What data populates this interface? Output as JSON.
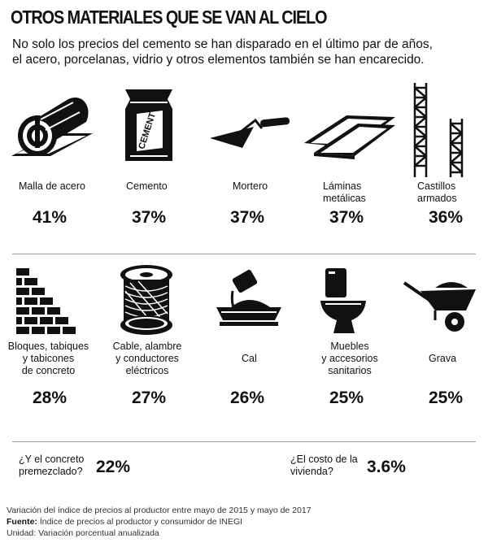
{
  "header": {
    "title": "OTROS MATERIALES QUE SE VAN AL CIELO",
    "subtitle_line1": "No solo los precios del cemento se han disparado en el último par de años,",
    "subtitle_line2": "el acero, porcelanas, vidrio y otros elementos también se han encarecido."
  },
  "row1": [
    {
      "icon": "steel-mesh-roll-icon",
      "label_l1": "Malla de acero",
      "label_l2": "",
      "value": "41%"
    },
    {
      "icon": "cement-bag-icon",
      "label_l1": "Cemento",
      "label_l2": "",
      "value": "37%",
      "bag_text": "CEMENT"
    },
    {
      "icon": "mortar-trowel-icon",
      "label_l1": "Mortero",
      "label_l2": "",
      "value": "37%"
    },
    {
      "icon": "metal-sheets-icon",
      "label_l1": "Láminas",
      "label_l2": "metálicas",
      "value": "37%"
    },
    {
      "icon": "rebar-scaffold-icon",
      "label_l1": "Castillos",
      "label_l2": "armados",
      "value": "36%"
    }
  ],
  "row2": [
    {
      "icon": "brick-wall-icon",
      "label_l1": "Bloques, tabiques",
      "label_l2": "y tabicones",
      "label_l3": "de concreto",
      "value": "28%"
    },
    {
      "icon": "cable-spool-icon",
      "label_l1": "Cable, alambre",
      "label_l2": "y conductores",
      "label_l3": "eléctricos",
      "value": "27%"
    },
    {
      "icon": "lime-bucket-icon",
      "label_l1": "Cal",
      "label_l2": "",
      "label_l3": "",
      "value": "26%"
    },
    {
      "icon": "toilet-icon",
      "label_l1": "Muebles",
      "label_l2": "y accesorios",
      "label_l3": "sanitarios",
      "value": "25%"
    },
    {
      "icon": "wheelbarrow-icon",
      "label_l1": "Grava",
      "label_l2": "",
      "label_l3": "",
      "value": "25%"
    }
  ],
  "extras": {
    "concrete_q1": "¿Y el concreto",
    "concrete_q2": "premezclado?",
    "concrete_value": "22%",
    "housing_q1": "¿El costo de la",
    "housing_q2": "vivienda?",
    "housing_value": "3.6%"
  },
  "footer": {
    "note": "Variación del índice de precios al productor entre mayo de 2015 y mayo de 2017",
    "source_label": "Fuente:",
    "source_text": " Índice de precios al productor y consumidor de INEGI",
    "unit": "Unidad: Variación porcentual anualizada"
  }
}
